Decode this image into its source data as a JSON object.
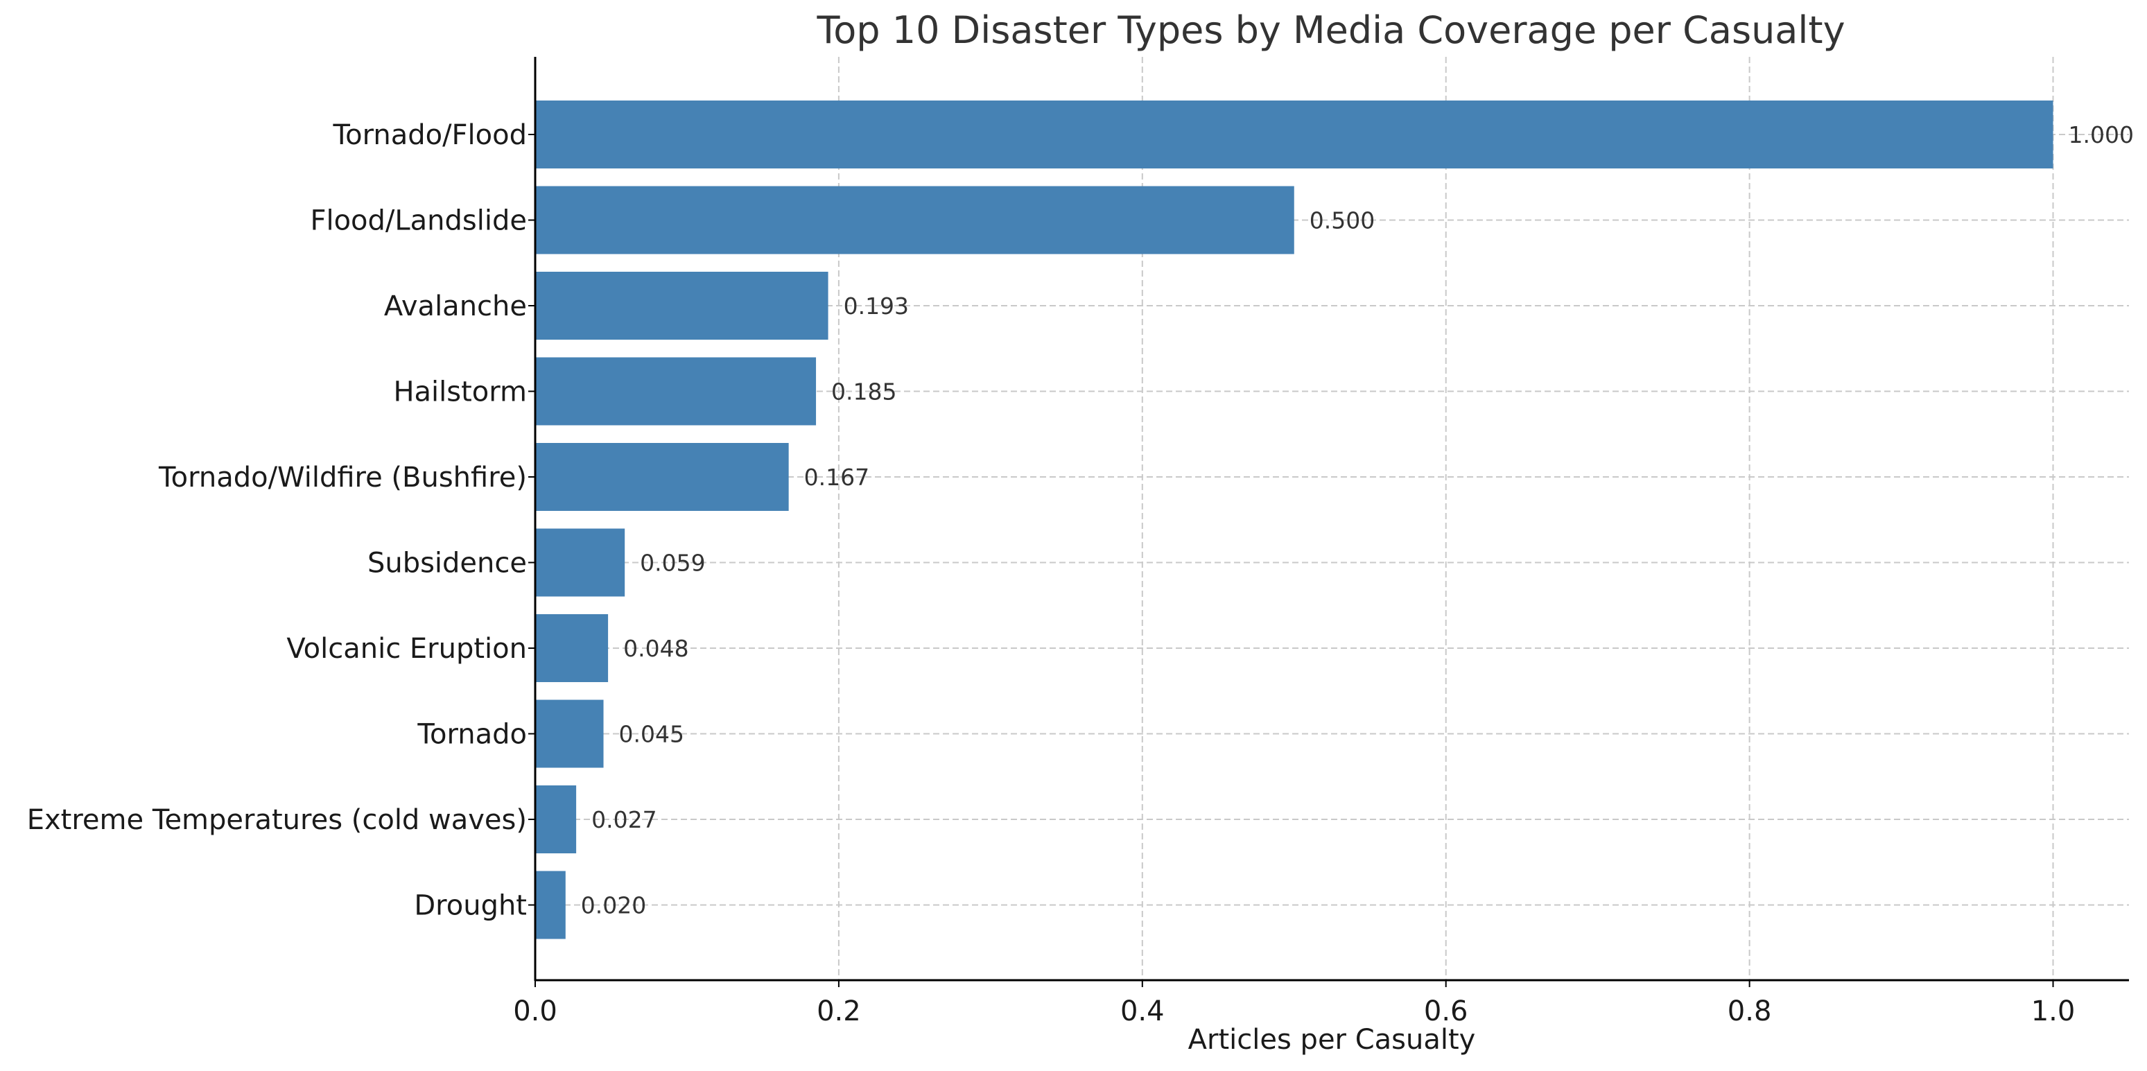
{
  "chart_data": {
    "type": "bar",
    "orientation": "horizontal",
    "title": "Top 10 Disaster Types by Media Coverage per Casualty",
    "xlabel": "Articles per Casualty",
    "ylabel": "",
    "categories": [
      "Tornado/Flood",
      "Flood/Landslide",
      "Avalanche",
      "Hailstorm",
      "Tornado/Wildfire (Bushfire)",
      "Subsidence",
      "Volcanic Eruption",
      "Tornado",
      "Extreme Temperatures (cold waves)",
      "Drought"
    ],
    "values": [
      1.0,
      0.5,
      0.193,
      0.185,
      0.167,
      0.059,
      0.048,
      0.045,
      0.027,
      0.02
    ],
    "value_labels": [
      "1.000",
      "0.500",
      "0.193",
      "0.185",
      "0.167",
      "0.059",
      "0.048",
      "0.045",
      "0.027",
      "0.020"
    ],
    "xlim": [
      0,
      1.05
    ],
    "xticks": [
      0.0,
      0.2,
      0.4,
      0.6,
      0.8,
      1.0
    ],
    "xtick_labels": [
      "0.0",
      "0.2",
      "0.4",
      "0.6",
      "0.8",
      "1.0"
    ],
    "grid": true,
    "bar_color": "#4682b4"
  }
}
